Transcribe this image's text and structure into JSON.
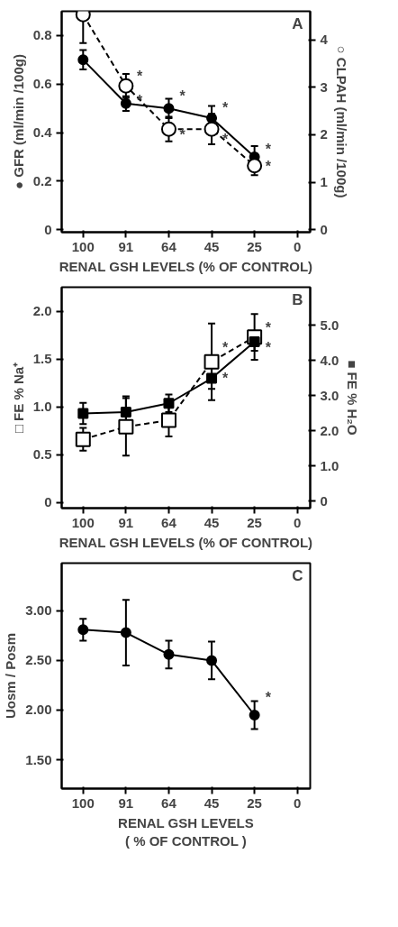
{
  "chart_data": [
    {
      "type": "line",
      "title": "A",
      "xlabel": "RENAL GSH LEVELS (% OF CONTROL)",
      "ylabel": "● GFR (ml/min /100g)",
      "y2label": "○ CLPAH (ml/min /100g)",
      "categories": [
        "100",
        "91",
        "64",
        "45",
        "25",
        "0"
      ],
      "ylim": [
        -0.01,
        0.9
      ],
      "yticks": [
        0,
        0.2,
        0.4,
        0.6,
        0.8
      ],
      "y2lim": [
        -0.05,
        4.6
      ],
      "y2ticks": [
        0,
        1,
        2,
        3,
        4
      ],
      "grid": false,
      "marker": "circle",
      "series": [
        {
          "color": "#000000",
          "line_style": "solid",
          "values": [
            0.7,
            0.52,
            0.5,
            0.46,
            0.3,
            null
          ],
          "errors": [
            0.04,
            0.03,
            0.04,
            0.05,
            0.045,
            null
          ]
        },
        {
          "color": "#000000",
          "line_style": "dashed",
          "axis": "y2",
          "values": [
            4.53,
            3.03,
            2.12,
            2.12,
            1.35,
            null
          ],
          "errors": [
            0.6,
            0.25,
            0.26,
            0.32,
            0.2,
            null
          ]
        }
      ],
      "annotations": [
        {
          "text": "*",
          "x": "91",
          "y": 0.63
        },
        {
          "text": "*",
          "x": "91",
          "y": 0.53
        },
        {
          "text": "*",
          "x": "64",
          "y": 0.55
        },
        {
          "text": "*",
          "x": "64",
          "y": 0.39
        },
        {
          "text": "*",
          "x": "45",
          "y": 0.5
        },
        {
          "text": "*",
          "x": "45",
          "y": 0.37
        },
        {
          "text": "*",
          "x": "25",
          "y": 0.33
        },
        {
          "text": "*",
          "x": "25",
          "y": 0.26
        }
      ]
    },
    {
      "type": "line",
      "title": "B",
      "xlabel": "RENAL GSH LEVELS (% OF CONTROL)",
      "ylabel": "□ FE % Na⁺",
      "y2label": "■ FE % H₂O",
      "categories": [
        "100",
        "91",
        "64",
        "45",
        "25",
        "0"
      ],
      "ylim": [
        -0.06,
        2.25
      ],
      "yticks": [
        0,
        0.5,
        {
          "value": 1,
          "label": "1.0"
        },
        1.5,
        {
          "value": 2,
          "label": "2.0"
        }
      ],
      "y2lim": [
        -0.2,
        6.08
      ],
      "y2ticks": [
        0,
        {
          "value": 1,
          "label": "1.0"
        },
        {
          "value": 2,
          "label": "2.0"
        },
        {
          "value": 3,
          "label": "3.0"
        },
        {
          "value": 4,
          "label": "4.0"
        },
        {
          "value": 5,
          "label": "5.0"
        }
      ],
      "grid": false,
      "marker": "square",
      "series": [
        {
          "color": "#000000",
          "line_style": "dashed",
          "values": [
            0.66,
            0.79,
            0.86,
            1.47,
            1.73,
            null
          ],
          "errors": [
            0.12,
            0.3,
            0.17,
            0.4,
            0.24,
            null
          ]
        },
        {
          "color": "#000000",
          "line_style": "solid",
          "axis": "y2",
          "values": [
            2.49,
            2.53,
            2.78,
            3.49,
            4.53,
            null
          ],
          "errors": [
            0.3,
            0.45,
            0.25,
            0.3,
            0.26,
            null
          ]
        }
      ],
      "annotations": [
        {
          "text": "*",
          "x": "45",
          "y": 1.61
        },
        {
          "text": "*",
          "x": "45",
          "y": 1.29
        },
        {
          "text": "*",
          "x": "25",
          "y": 1.82
        },
        {
          "text": "*",
          "x": "25",
          "y": 1.61
        }
      ]
    },
    {
      "type": "line",
      "title": "C",
      "xlabel": "RENAL GSH LEVELS\n( % OF CONTROL )",
      "ylabel": "Uosm / Posm",
      "categories": [
        "100",
        "91",
        "64",
        "45",
        "25",
        "0"
      ],
      "ylim": [
        1.21,
        3.48
      ],
      "yticks": [
        {
          "value": 1.5,
          "label": "1.50"
        },
        {
          "value": 2,
          "label": "2.00"
        },
        {
          "value": 2.5,
          "label": "2.50"
        },
        {
          "value": 3,
          "label": "3.00"
        }
      ],
      "grid": false,
      "marker": "circle",
      "series": [
        {
          "color": "#000000",
          "line_style": "solid",
          "values": [
            2.81,
            2.78,
            2.56,
            2.5,
            1.95,
            null
          ],
          "errors": [
            0.11,
            0.33,
            0.14,
            0.19,
            0.14,
            null
          ]
        }
      ],
      "annotations": [
        {
          "text": "*",
          "x": "25",
          "y": 2.12
        }
      ]
    }
  ]
}
